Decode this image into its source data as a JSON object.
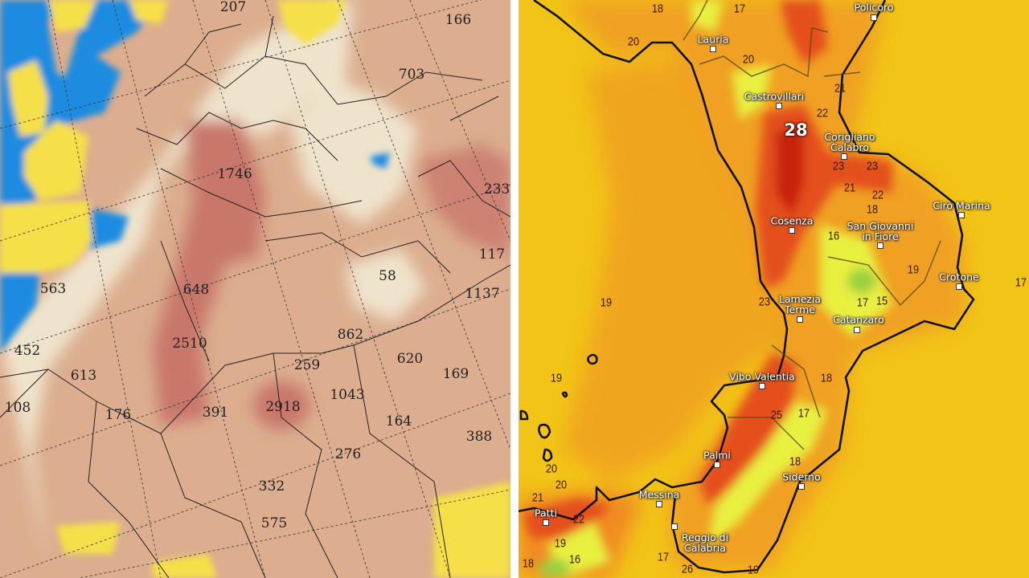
{
  "left_map": {
    "colors": {
      "sea": "#1a8be0",
      "low": "#f5e04a",
      "light": "#efe3cc",
      "medium": "#dcae8f",
      "high": "#c8776a"
    },
    "values": [
      "207",
      "166",
      "703",
      "1746",
      "233",
      "117",
      "563",
      "648",
      "58",
      "1137",
      "452",
      "2510",
      "862",
      "620",
      "169",
      "613",
      "259",
      "1043",
      "108",
      "176",
      "391",
      "2918",
      "164",
      "388",
      "276",
      "332",
      "575"
    ]
  },
  "right_map": {
    "colors": {
      "sea": "#f2c417",
      "warm": "#f0a020",
      "hot": "#e4501c",
      "hottest": "#c8200e",
      "cool": "#e8f040",
      "coolest": "#9cd040"
    },
    "values": [
      "18",
      "17",
      "20",
      "20",
      "21",
      "22",
      "28",
      "23",
      "23",
      "21",
      "22",
      "18",
      "16",
      "19",
      "17",
      "19",
      "23",
      "17",
      "15",
      "19",
      "18",
      "25",
      "17",
      "18",
      "20",
      "20",
      "21",
      "22",
      "19",
      "16",
      "18",
      "26",
      "19",
      "17"
    ],
    "cities": [
      "Policoro",
      "Lauria",
      "Castrovillari",
      "Corigliano\nCalabro",
      "Cosenza",
      "San Giovanni\nin Fiore",
      "Cirò Marina",
      "Crotone",
      "Lamezia\nTerme",
      "Catanzaro",
      "Vibo Valentia",
      "Palmi",
      "Siderno",
      "Messina",
      "Patti",
      "Reggio di\nCalabria"
    ]
  }
}
